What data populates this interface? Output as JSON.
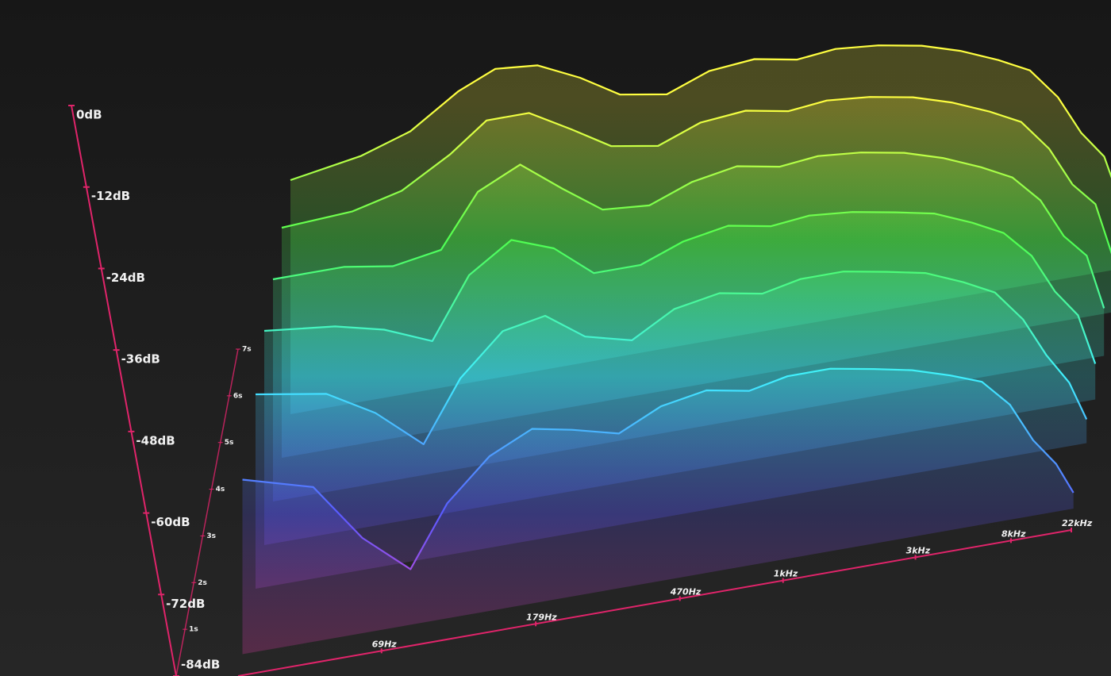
{
  "chart_data": {
    "type": "waterfall",
    "x": [
      30,
      45,
      60,
      80,
      100,
      130,
      170,
      220,
      300,
      400,
      550,
      750,
      1000,
      1400,
      2000,
      2800,
      4000,
      5500,
      7500,
      10000,
      14000,
      20000
    ],
    "xlim": [
      30,
      22000
    ],
    "log_x": true,
    "xticks": [
      {
        "value": 69,
        "label": "69Hz"
      },
      {
        "value": 179,
        "label": "179Hz"
      },
      {
        "value": 470,
        "label": "470Hz"
      },
      {
        "value": 1000,
        "label": "1kHz"
      },
      {
        "value": 3000,
        "label": "3kHz"
      },
      {
        "value": 8000,
        "label": "8kHz"
      },
      {
        "value": 22000,
        "label": "22kHz"
      }
    ],
    "ylim": [
      -84,
      0
    ],
    "yticks": [
      {
        "value": 0,
        "label": "0dB"
      },
      {
        "value": -12,
        "label": "-12dB"
      },
      {
        "value": -24,
        "label": "-24dB"
      },
      {
        "value": -36,
        "label": "-36dB"
      },
      {
        "value": -48,
        "label": "-48dB"
      },
      {
        "value": -60,
        "label": "-60dB"
      },
      {
        "value": -72,
        "label": "-72dB"
      },
      {
        "value": -84,
        "label": "-84dB"
      }
    ],
    "tlim": [
      0,
      7
    ],
    "tticks": [
      {
        "value": 1,
        "label": "1s"
      },
      {
        "value": 2,
        "label": "2s"
      },
      {
        "value": 3,
        "label": "3s"
      },
      {
        "value": 4,
        "label": "4s"
      },
      {
        "value": 5,
        "label": "5s"
      },
      {
        "value": 6,
        "label": "6s"
      },
      {
        "value": 7,
        "label": "7s"
      }
    ],
    "colormap": [
      "#ff40c0",
      "#5a5aff",
      "#40f0ff",
      "#50ff50",
      "#ffff40"
    ],
    "axis_color": "#e0246a",
    "series": [
      {
        "t": 6,
        "values": [
          -25,
          -22,
          -18,
          -10,
          -6,
          -7,
          -12,
          -18,
          -20,
          -16,
          -15,
          -17,
          -16,
          -17,
          -19,
          -22,
          -26,
          -30,
          -38,
          -48,
          -55,
          -68
        ]
      },
      {
        "t": 5,
        "values": [
          -26,
          -25,
          -22,
          -15,
          -8,
          -8,
          -14,
          -20,
          -22,
          -18,
          -17,
          -19,
          -18,
          -19,
          -21,
          -24,
          -28,
          -32,
          -40,
          -50,
          -56,
          -70
        ]
      },
      {
        "t": 4,
        "values": [
          -28,
          -28,
          -30,
          -28,
          -15,
          -10,
          -18,
          -25,
          -26,
          -22,
          -20,
          -22,
          -21,
          -22,
          -24,
          -27,
          -31,
          -35,
          -42,
          -52,
          -58,
          -72
        ]
      },
      {
        "t": 3,
        "values": [
          -30,
          -32,
          -35,
          -40,
          -25,
          -18,
          -22,
          -30,
          -30,
          -26,
          -24,
          -26,
          -25,
          -26,
          -28,
          -30,
          -34,
          -38,
          -45,
          -55,
          -62,
          -75
        ]
      },
      {
        "t": 2,
        "values": [
          -35,
          -38,
          -45,
          -55,
          -40,
          -30,
          -28,
          -35,
          -38,
          -32,
          -30,
          -32,
          -30,
          -30,
          -32,
          -34,
          -38,
          -42,
          -50,
          -60,
          -68,
          -78
        ]
      },
      {
        "t": 0.5,
        "values": [
          -40,
          -45,
          -60,
          -70,
          -55,
          -45,
          -40,
          -42,
          -45,
          -40,
          -38,
          -40,
          -38,
          -38,
          -40,
          -42,
          -45,
          -48,
          -55,
          -65,
          -72,
          -80
        ]
      }
    ]
  }
}
